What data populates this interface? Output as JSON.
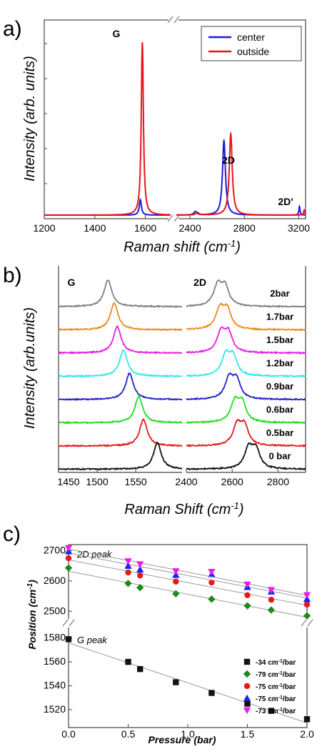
{
  "panel_labels": {
    "a": "a)",
    "b": "b)",
    "c": "c)"
  },
  "chart_data": [
    {
      "type": "line",
      "panel": "a",
      "ylabel": "Intensity (arb. units)",
      "xlabel_prefix": "Raman shift (cm",
      "xlabel_sup": "-1",
      "xlabel_suffix": ")",
      "x_break": true,
      "xlim_left": [
        1200,
        1700
      ],
      "xlim_right": [
        2300,
        3250
      ],
      "xticks_left": [
        "1200",
        "1400",
        "1600"
      ],
      "xticks_right": [
        "2400",
        "2800",
        "3200"
      ],
      "legend": {
        "position": "top-right",
        "entries": [
          "center",
          "outside"
        ]
      },
      "peak_labels": [
        "G",
        "2D",
        "2D'"
      ],
      "series": [
        {
          "name": "center",
          "color": "#1a1adc",
          "peaks": [
            {
              "x": 1580,
              "height": 0.09
            },
            {
              "x": 2440,
              "height": 0.02
            },
            {
              "x": 2650,
              "height": 0.43
            },
            {
              "x": 3205,
              "height": 0.05
            }
          ]
        },
        {
          "name": "outside",
          "color": "#e8141b",
          "peaks": [
            {
              "x": 1588,
              "height": 1.0
            },
            {
              "x": 2455,
              "height": 0.015
            },
            {
              "x": 2700,
              "height": 0.47
            },
            {
              "x": 3240,
              "height": 0.03
            }
          ]
        }
      ]
    },
    {
      "type": "line",
      "panel": "b",
      "ylabel": "Intensity (arb.units)",
      "xlabel_prefix": "Raman Shift (cm",
      "xlabel_sup": "-1",
      "xlabel_suffix": ")",
      "x_break": true,
      "xlim_left": [
        1450,
        1610
      ],
      "xlim_right": [
        2400,
        2920
      ],
      "xticks_left": [
        "1450",
        "1500",
        "1550"
      ],
      "xticks_right": [
        "2400",
        "2600",
        "2800"
      ],
      "peak_labels": [
        "G",
        "2D"
      ],
      "series": [
        {
          "name": "2bar",
          "color": "#808080",
          "g": 1514,
          "d": 2555
        },
        {
          "name": "1.7bar",
          "color": "#ee8a1a",
          "g": 1522,
          "d": 2565
        },
        {
          "name": "1.5bar",
          "color": "#e41ee4",
          "g": 1526,
          "d": 2570
        },
        {
          "name": "1.2bar",
          "color": "#2ee8ee",
          "g": 1534,
          "d": 2590
        },
        {
          "name": "0.9bar",
          "color": "#2222cc",
          "g": 1542,
          "d": 2605
        },
        {
          "name": "0.6bar",
          "color": "#22dd22",
          "g": 1554,
          "d": 2630
        },
        {
          "name": "0.5bar",
          "color": "#e41a1a",
          "g": 1560,
          "d": 2640
        },
        {
          "name": "0 bar",
          "color": "#111111",
          "g": 1578,
          "d": 2690
        }
      ]
    },
    {
      "type": "scatter",
      "panel": "c",
      "ylabel_prefix": "Position (cm",
      "ylabel_sup": "-1",
      "ylabel_suffix": ")",
      "xlabel": "Pressure (bar)",
      "xlim": [
        0.0,
        2.0
      ],
      "xticks": [
        "0.0",
        "0.5",
        "1.0",
        "1.5",
        "2.0"
      ],
      "y_break": true,
      "ylim_top": [
        2470,
        2720
      ],
      "ylim_bottom": [
        1505,
        1590
      ],
      "yticks_top": [
        "2500",
        "2600",
        "2700"
      ],
      "yticks_bottom": [
        "1520",
        "1540",
        "1560",
        "1580"
      ],
      "annotations": [
        "2D peak",
        "G peak"
      ],
      "legend": {
        "position": "bottom-right"
      },
      "x": [
        0.0,
        0.5,
        0.6,
        0.9,
        1.2,
        1.5,
        1.7,
        2.0
      ],
      "series": [
        {
          "name": "-34 cm",
          "unit": "-1",
          "suffix": "/bar",
          "color": "#111111",
          "marker": "square",
          "group": "bottom",
          "y": [
            1579,
            1560,
            1554,
            1543,
            1534,
            1525,
            1519,
            1512
          ]
        },
        {
          "name": "-79 cm",
          "unit": "-1",
          "suffix": "/bar",
          "color": "#1e8a1e",
          "marker": "diamond",
          "group": "top",
          "y": [
            2643,
            2592,
            2578,
            2558,
            2540,
            2518,
            2504,
            2485
          ]
        },
        {
          "name": "-75 cm",
          "unit": "-1",
          "suffix": "/bar",
          "color": "#e41a1a",
          "marker": "circle",
          "group": "top",
          "y": [
            2675,
            2628,
            2618,
            2598,
            2595,
            2553,
            2538,
            2522
          ]
        },
        {
          "name": "-75 cm",
          "unit": "-1",
          "suffix": "/bar",
          "color": "#1a22ee",
          "marker": "triangle-up",
          "group": "top",
          "y": [
            2698,
            2650,
            2638,
            2620,
            2622,
            2580,
            2565,
            2540
          ]
        },
        {
          "name": "-73 cm",
          "unit": "-1",
          "suffix": "/bar",
          "color": "#ee1aee",
          "marker": "triangle-down",
          "group": "top",
          "y": [
            2708,
            2665,
            2655,
            2632,
            2630,
            2588,
            2570,
            2553
          ]
        }
      ]
    }
  ]
}
